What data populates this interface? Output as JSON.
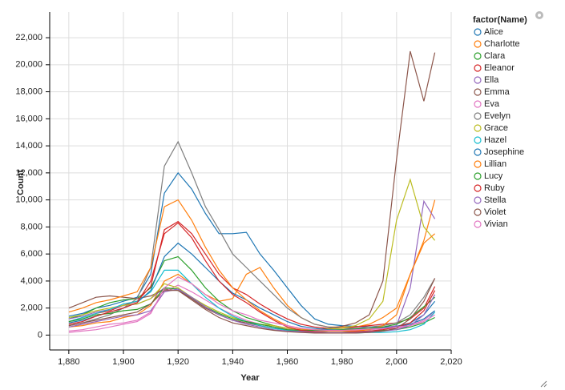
{
  "chart_data": {
    "type": "line",
    "xlabel": "Year",
    "ylabel": "Count",
    "legend_title": "factor(Name)",
    "x": [
      1880,
      1885,
      1890,
      1895,
      1900,
      1905,
      1910,
      1915,
      1920,
      1925,
      1930,
      1935,
      1940,
      1945,
      1950,
      1955,
      1960,
      1965,
      1970,
      1975,
      1980,
      1985,
      1990,
      1995,
      2000,
      2005,
      2010,
      2014
    ],
    "xlim": [
      1873,
      2020
    ],
    "xticks": [
      {
        "value": 1880,
        "label": "1,880"
      },
      {
        "value": 1900,
        "label": "1,900"
      },
      {
        "value": 1920,
        "label": "1,920"
      },
      {
        "value": 1940,
        "label": "1,940"
      },
      {
        "value": 1960,
        "label": "1,960"
      },
      {
        "value": 1980,
        "label": "1,980"
      },
      {
        "value": 2000,
        "label": "2,000"
      },
      {
        "value": 2020,
        "label": "2,020"
      }
    ],
    "ylim": [
      -1100,
      23900
    ],
    "yticks": [
      0,
      {
        "value": 2000,
        "label": "2,000"
      },
      {
        "value": 4000,
        "label": "4,000"
      },
      {
        "value": 6000,
        "label": "6,000"
      },
      {
        "value": 8000,
        "label": "8,000"
      },
      {
        "value": 10000,
        "label": "10,000"
      },
      {
        "value": 12000,
        "label": "12,000"
      },
      {
        "value": 14000,
        "label": "14,000"
      },
      {
        "value": 16000,
        "label": "16,000"
      },
      {
        "value": 18000,
        "label": "18,000"
      },
      {
        "value": 20000,
        "label": "20,000"
      },
      {
        "value": 22000,
        "label": "22,000"
      }
    ],
    "grid": true,
    "legend": "right",
    "series": [
      {
        "name": "Alice",
        "color": "#1f77b4",
        "values": [
          1400,
          1600,
          2000,
          2200,
          2500,
          2800,
          4500,
          10500,
          12000,
          10800,
          9000,
          7500,
          7500,
          7600,
          6000,
          4800,
          3500,
          2200,
          1200,
          800,
          700,
          650,
          600,
          600,
          650,
          900,
          1500,
          2500
        ]
      },
      {
        "name": "Charlotte",
        "color": "#ff7f0e",
        "values": [
          600,
          700,
          900,
          1000,
          1300,
          1500,
          2200,
          4000,
          4500,
          3800,
          3000,
          2500,
          2700,
          4500,
          5000,
          3500,
          2200,
          1300,
          800,
          600,
          600,
          600,
          800,
          1300,
          2000,
          4500,
          7000,
          10000
        ]
      },
      {
        "name": "Clara",
        "color": "#2ca02c",
        "values": [
          1200,
          1500,
          2000,
          2400,
          2600,
          2700,
          3500,
          5500,
          5800,
          4800,
          3500,
          2500,
          1800,
          1300,
          1000,
          700,
          500,
          350,
          250,
          200,
          200,
          250,
          300,
          350,
          400,
          600,
          900,
          1300
        ]
      },
      {
        "name": "Eleanor",
        "color": "#d62728",
        "values": [
          1000,
          1300,
          1600,
          1800,
          2200,
          2500,
          3600,
          7800,
          8400,
          7500,
          6000,
          4500,
          3500,
          3000,
          2300,
          1700,
          1200,
          800,
          600,
          500,
          500,
          600,
          700,
          800,
          900,
          1200,
          2000,
          3600
        ]
      },
      {
        "name": "Ella",
        "color": "#9467bd",
        "values": [
          1200,
          1400,
          1700,
          1900,
          2200,
          2300,
          2700,
          3500,
          3400,
          2700,
          2000,
          1500,
          1100,
          900,
          700,
          500,
          400,
          300,
          300,
          300,
          300,
          350,
          400,
          500,
          700,
          3500,
          9900,
          8600
        ]
      },
      {
        "name": "Emma",
        "color": "#8c564b",
        "values": [
          2000,
          2400,
          2800,
          2900,
          2800,
          2700,
          2900,
          3400,
          3300,
          2700,
          2000,
          1500,
          1100,
          900,
          700,
          500,
          400,
          350,
          400,
          500,
          650,
          900,
          1500,
          4000,
          13000,
          21000,
          17300,
          20900
        ]
      },
      {
        "name": "Eva",
        "color": "#e377c2",
        "values": [
          300,
          400,
          600,
          800,
          900,
          1100,
          1700,
          3200,
          3700,
          3200,
          2600,
          2000,
          1500,
          1100,
          800,
          600,
          450,
          350,
          300,
          300,
          300,
          350,
          400,
          450,
          500,
          700,
          1100,
          1700
        ]
      },
      {
        "name": "Evelyn",
        "color": "#7f7f7f",
        "values": [
          700,
          900,
          1200,
          1500,
          2000,
          2700,
          5000,
          12500,
          14300,
          12000,
          9500,
          7800,
          6000,
          5000,
          4000,
          3000,
          2000,
          1300,
          800,
          600,
          500,
          500,
          600,
          700,
          900,
          1500,
          2800,
          4200
        ]
      },
      {
        "name": "Grace",
        "color": "#bcbd22",
        "values": [
          1300,
          1500,
          1800,
          2000,
          2200,
          2300,
          2700,
          3800,
          3500,
          2800,
          2200,
          1700,
          1300,
          1000,
          800,
          700,
          500,
          400,
          400,
          450,
          500,
          700,
          1200,
          2500,
          8500,
          11500,
          8000,
          7000
        ]
      },
      {
        "name": "Hazel",
        "color": "#17becf",
        "values": [
          1000,
          1300,
          1600,
          1900,
          2300,
          2500,
          3200,
          4800,
          4800,
          3800,
          2800,
          2000,
          1400,
          1000,
          700,
          500,
          350,
          250,
          200,
          150,
          150,
          150,
          200,
          200,
          250,
          400,
          800,
          1700
        ]
      },
      {
        "name": "Josephine",
        "color": "#1f77b4",
        "values": [
          900,
          1100,
          1400,
          1700,
          2000,
          2400,
          3300,
          5800,
          6800,
          6000,
          5000,
          4000,
          3100,
          2600,
          2000,
          1500,
          1000,
          650,
          500,
          400,
          400,
          450,
          500,
          550,
          600,
          800,
          1200,
          1800
        ]
      },
      {
        "name": "Lillian",
        "color": "#ff7f0e",
        "values": [
          1700,
          2000,
          2400,
          2600,
          2900,
          3200,
          5000,
          9500,
          10000,
          8500,
          6500,
          4800,
          3500,
          2600,
          1800,
          1200,
          700,
          450,
          350,
          300,
          300,
          300,
          400,
          700,
          1500,
          4500,
          6800,
          7500
        ]
      },
      {
        "name": "Lucy",
        "color": "#2ca02c",
        "values": [
          1000,
          1200,
          1500,
          1600,
          1800,
          1900,
          2300,
          3500,
          3400,
          2800,
          2100,
          1600,
          1200,
          1000,
          800,
          600,
          400,
          350,
          350,
          350,
          400,
          450,
          500,
          600,
          800,
          1300,
          2100,
          2800
        ]
      },
      {
        "name": "Ruby",
        "color": "#d62728",
        "values": [
          800,
          1000,
          1400,
          1700,
          2000,
          2400,
          4000,
          7500,
          8300,
          7200,
          5500,
          4000,
          3000,
          2400,
          1700,
          1100,
          600,
          350,
          250,
          200,
          200,
          250,
          300,
          400,
          600,
          900,
          1800,
          3300
        ]
      },
      {
        "name": "Stella",
        "color": "#9467bd",
        "values": [
          600,
          800,
          1000,
          1200,
          1400,
          1500,
          1800,
          3200,
          3400,
          2800,
          2100,
          1500,
          1100,
          800,
          600,
          400,
          300,
          250,
          200,
          200,
          200,
          200,
          250,
          300,
          400,
          700,
          1500,
          3000
        ]
      },
      {
        "name": "Violet",
        "color": "#8c564b",
        "values": [
          700,
          900,
          1100,
          1300,
          1500,
          1700,
          2300,
          3300,
          3300,
          2600,
          1900,
          1300,
          900,
          700,
          500,
          350,
          250,
          200,
          150,
          150,
          150,
          150,
          200,
          300,
          500,
          1200,
          2500,
          4200
        ]
      },
      {
        "name": "Vivian",
        "color": "#e377c2",
        "values": [
          200,
          300,
          400,
          600,
          800,
          1000,
          1600,
          3500,
          4300,
          3800,
          3000,
          2300,
          1800,
          1500,
          1100,
          900,
          700,
          500,
          400,
          350,
          350,
          400,
          450,
          500,
          600,
          700,
          1000,
          1500
        ]
      }
    ]
  }
}
